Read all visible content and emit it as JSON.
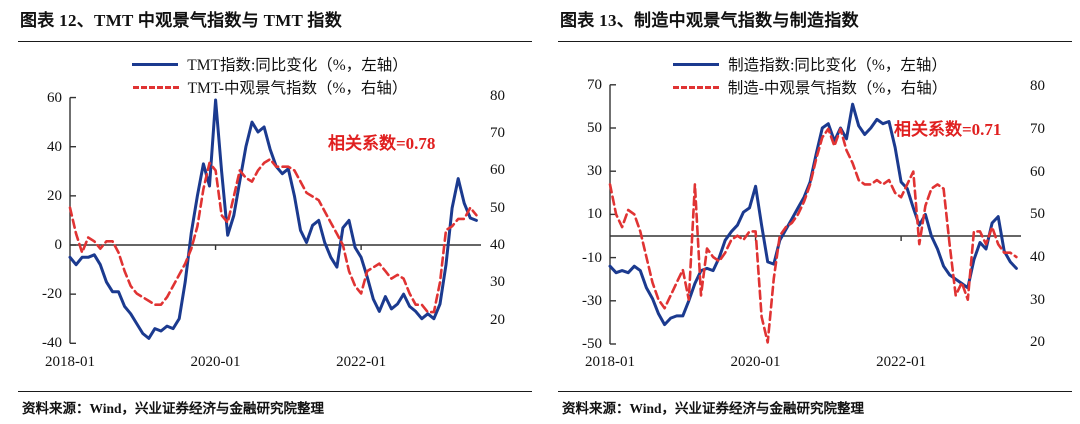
{
  "panels": [
    {
      "title": "图表 12、TMT 中观景气指数与 TMT 指数",
      "legend": [
        {
          "label": "TMT指数:同比变化（%，左轴）",
          "color": "#1b3a8f",
          "style": "solid"
        },
        {
          "label": "TMT-中观景气指数（%，右轴）",
          "color": "#e03333",
          "style": "dashed"
        }
      ],
      "annotation": "相关系数=0.78",
      "annotation_color": "#e02020",
      "source": "资料来源：Wind，兴业证券经济与金融研究院整理"
    },
    {
      "title": "图表 13、制造中观景气指数与制造指数",
      "legend": [
        {
          "label": "制造指数:同比变化（%，左轴）",
          "color": "#1b3a8f",
          "style": "solid"
        },
        {
          "label": "制造-中观景气指数（%，右轴）",
          "color": "#e03333",
          "style": "dashed"
        }
      ],
      "annotation": "相关系数=0.71",
      "annotation_color": "#e02020",
      "source": "资料来源：Wind，兴业证券经济与金融研究院整理"
    }
  ],
  "chart_data": [
    {
      "type": "line",
      "title": "TMT 中观景气指数与 TMT 指数",
      "freq": "monthly",
      "x_range": [
        "2018-01",
        "2023-08"
      ],
      "x_tick_labels": [
        "2018-01",
        "2020-01",
        "2022-01"
      ],
      "x_tick_months": [
        0,
        24,
        48
      ],
      "left_axis": {
        "ticks": [
          60,
          40,
          20,
          0,
          -20,
          -40
        ],
        "min": -40,
        "max": 60,
        "unit": "%"
      },
      "right_axis": {
        "ticks": [
          80,
          70,
          60,
          50,
          40,
          30,
          20
        ],
        "min": 20,
        "max": 80,
        "unit": "%"
      },
      "correlation": 0.78,
      "series": [
        {
          "name": "TMT指数:同比变化",
          "axis": "left",
          "color": "#1b3a8f",
          "dash": false,
          "values": [
            -5,
            -8,
            -5,
            -5,
            -4,
            -8,
            -15,
            -19,
            -19,
            -25,
            -28,
            -32,
            -36,
            -38,
            -34,
            -35,
            -33,
            -34,
            -30,
            -15,
            5,
            20,
            33,
            24,
            59,
            30,
            4,
            12,
            26,
            40,
            50,
            46,
            48,
            39,
            32,
            29,
            31,
            20,
            6,
            1,
            8,
            10,
            1,
            -5,
            -9,
            7,
            10,
            -1,
            -5,
            -13,
            -22,
            -27,
            -21,
            -26,
            -24,
            -20,
            -25,
            -27,
            -30,
            -28,
            -30,
            -24,
            -8,
            15,
            27,
            17,
            11,
            10
          ]
        },
        {
          "name": "TMT-中观景气指数",
          "axis": "right",
          "color": "#e03333",
          "dash": true,
          "values": [
            50,
            43,
            38,
            42,
            41,
            39,
            41,
            41,
            38,
            33,
            29,
            27,
            26,
            25,
            24,
            24,
            26,
            29,
            32,
            35,
            39,
            45,
            55,
            62,
            60,
            48,
            46,
            53,
            60,
            58,
            57,
            60,
            62,
            63,
            61,
            61,
            61,
            60,
            57,
            54,
            53,
            52,
            49,
            46,
            43,
            40,
            33,
            29,
            27,
            33,
            34,
            35,
            33,
            31,
            32,
            31,
            27,
            24,
            24,
            22,
            22,
            30,
            44,
            45,
            47,
            47,
            50,
            48
          ]
        }
      ]
    },
    {
      "type": "line",
      "title": "制造中观景气指数与制造指数",
      "freq": "monthly",
      "x_range": [
        "2018-01",
        "2023-08"
      ],
      "x_tick_labels": [
        "2018-01",
        "2020-01",
        "2022-01"
      ],
      "x_tick_months": [
        0,
        24,
        48
      ],
      "left_axis": {
        "ticks": [
          70,
          50,
          30,
          10,
          -10,
          -30,
          -50
        ],
        "min": -50,
        "max": 70,
        "unit": "%"
      },
      "right_axis": {
        "ticks": [
          80,
          70,
          60,
          50,
          40,
          30,
          20
        ],
        "min": 20,
        "max": 80,
        "unit": "%"
      },
      "correlation": 0.71,
      "series": [
        {
          "name": "制造指数:同比变化",
          "axis": "left",
          "color": "#1b3a8f",
          "dash": false,
          "values": [
            -14,
            -17,
            -16,
            -17,
            -14,
            -16,
            -24,
            -29,
            -36,
            -41,
            -38,
            -37,
            -37,
            -30,
            -22,
            -16,
            -15,
            -16,
            -10,
            -2,
            2,
            5,
            11,
            13,
            23,
            5,
            -12,
            -13,
            -2,
            3,
            8,
            13,
            18,
            25,
            38,
            50,
            52,
            44,
            50,
            45,
            61,
            51,
            47,
            50,
            54,
            52,
            53,
            41,
            25,
            22,
            13,
            5,
            10,
            0,
            -6,
            -14,
            -18,
            -20,
            -22,
            -24,
            -11,
            -3,
            -6,
            6,
            9,
            -7,
            -12,
            -15
          ]
        },
        {
          "name": "制造-中观景气指数",
          "axis": "right",
          "color": "#e03333",
          "dash": true,
          "values": [
            57,
            50,
            47,
            51,
            50,
            46,
            40,
            34,
            30,
            28,
            31,
            34,
            37,
            30,
            57,
            31,
            42,
            40,
            39,
            41,
            44,
            45,
            44,
            46,
            46,
            26,
            20,
            35,
            45,
            47,
            48,
            50,
            53,
            57,
            63,
            68,
            70,
            66,
            70,
            65,
            62,
            58,
            57,
            57,
            58,
            57,
            58,
            55,
            54,
            57,
            60,
            43,
            52,
            56,
            57,
            56,
            43,
            31,
            34,
            30,
            46,
            46,
            43,
            47,
            43,
            41,
            41,
            40
          ]
        }
      ]
    }
  ]
}
